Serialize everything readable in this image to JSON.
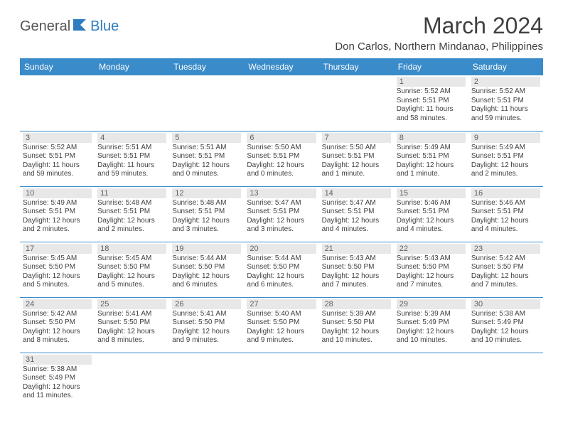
{
  "logo": {
    "part1": "General",
    "part2": "Blue"
  },
  "title": "March 2024",
  "location": "Don Carlos, Northern Mindanao, Philippines",
  "colors": {
    "header_bg": "#3a8bc9",
    "header_fg": "#ffffff",
    "daynum_bg": "#e8e8e8",
    "row_border": "#3a8bc9",
    "logo_blue": "#2d7bc0"
  },
  "weekdays": [
    "Sunday",
    "Monday",
    "Tuesday",
    "Wednesday",
    "Thursday",
    "Friday",
    "Saturday"
  ],
  "weeks": [
    [
      null,
      null,
      null,
      null,
      null,
      {
        "n": "1",
        "rise": "Sunrise: 5:52 AM",
        "set": "Sunset: 5:51 PM",
        "day": "Daylight: 11 hours and 58 minutes."
      },
      {
        "n": "2",
        "rise": "Sunrise: 5:52 AM",
        "set": "Sunset: 5:51 PM",
        "day": "Daylight: 11 hours and 59 minutes."
      }
    ],
    [
      {
        "n": "3",
        "rise": "Sunrise: 5:52 AM",
        "set": "Sunset: 5:51 PM",
        "day": "Daylight: 11 hours and 59 minutes."
      },
      {
        "n": "4",
        "rise": "Sunrise: 5:51 AM",
        "set": "Sunset: 5:51 PM",
        "day": "Daylight: 11 hours and 59 minutes."
      },
      {
        "n": "5",
        "rise": "Sunrise: 5:51 AM",
        "set": "Sunset: 5:51 PM",
        "day": "Daylight: 12 hours and 0 minutes."
      },
      {
        "n": "6",
        "rise": "Sunrise: 5:50 AM",
        "set": "Sunset: 5:51 PM",
        "day": "Daylight: 12 hours and 0 minutes."
      },
      {
        "n": "7",
        "rise": "Sunrise: 5:50 AM",
        "set": "Sunset: 5:51 PM",
        "day": "Daylight: 12 hours and 1 minute."
      },
      {
        "n": "8",
        "rise": "Sunrise: 5:49 AM",
        "set": "Sunset: 5:51 PM",
        "day": "Daylight: 12 hours and 1 minute."
      },
      {
        "n": "9",
        "rise": "Sunrise: 5:49 AM",
        "set": "Sunset: 5:51 PM",
        "day": "Daylight: 12 hours and 2 minutes."
      }
    ],
    [
      {
        "n": "10",
        "rise": "Sunrise: 5:49 AM",
        "set": "Sunset: 5:51 PM",
        "day": "Daylight: 12 hours and 2 minutes."
      },
      {
        "n": "11",
        "rise": "Sunrise: 5:48 AM",
        "set": "Sunset: 5:51 PM",
        "day": "Daylight: 12 hours and 2 minutes."
      },
      {
        "n": "12",
        "rise": "Sunrise: 5:48 AM",
        "set": "Sunset: 5:51 PM",
        "day": "Daylight: 12 hours and 3 minutes."
      },
      {
        "n": "13",
        "rise": "Sunrise: 5:47 AM",
        "set": "Sunset: 5:51 PM",
        "day": "Daylight: 12 hours and 3 minutes."
      },
      {
        "n": "14",
        "rise": "Sunrise: 5:47 AM",
        "set": "Sunset: 5:51 PM",
        "day": "Daylight: 12 hours and 4 minutes."
      },
      {
        "n": "15",
        "rise": "Sunrise: 5:46 AM",
        "set": "Sunset: 5:51 PM",
        "day": "Daylight: 12 hours and 4 minutes."
      },
      {
        "n": "16",
        "rise": "Sunrise: 5:46 AM",
        "set": "Sunset: 5:51 PM",
        "day": "Daylight: 12 hours and 4 minutes."
      }
    ],
    [
      {
        "n": "17",
        "rise": "Sunrise: 5:45 AM",
        "set": "Sunset: 5:50 PM",
        "day": "Daylight: 12 hours and 5 minutes."
      },
      {
        "n": "18",
        "rise": "Sunrise: 5:45 AM",
        "set": "Sunset: 5:50 PM",
        "day": "Daylight: 12 hours and 5 minutes."
      },
      {
        "n": "19",
        "rise": "Sunrise: 5:44 AM",
        "set": "Sunset: 5:50 PM",
        "day": "Daylight: 12 hours and 6 minutes."
      },
      {
        "n": "20",
        "rise": "Sunrise: 5:44 AM",
        "set": "Sunset: 5:50 PM",
        "day": "Daylight: 12 hours and 6 minutes."
      },
      {
        "n": "21",
        "rise": "Sunrise: 5:43 AM",
        "set": "Sunset: 5:50 PM",
        "day": "Daylight: 12 hours and 7 minutes."
      },
      {
        "n": "22",
        "rise": "Sunrise: 5:43 AM",
        "set": "Sunset: 5:50 PM",
        "day": "Daylight: 12 hours and 7 minutes."
      },
      {
        "n": "23",
        "rise": "Sunrise: 5:42 AM",
        "set": "Sunset: 5:50 PM",
        "day": "Daylight: 12 hours and 7 minutes."
      }
    ],
    [
      {
        "n": "24",
        "rise": "Sunrise: 5:42 AM",
        "set": "Sunset: 5:50 PM",
        "day": "Daylight: 12 hours and 8 minutes."
      },
      {
        "n": "25",
        "rise": "Sunrise: 5:41 AM",
        "set": "Sunset: 5:50 PM",
        "day": "Daylight: 12 hours and 8 minutes."
      },
      {
        "n": "26",
        "rise": "Sunrise: 5:41 AM",
        "set": "Sunset: 5:50 PM",
        "day": "Daylight: 12 hours and 9 minutes."
      },
      {
        "n": "27",
        "rise": "Sunrise: 5:40 AM",
        "set": "Sunset: 5:50 PM",
        "day": "Daylight: 12 hours and 9 minutes."
      },
      {
        "n": "28",
        "rise": "Sunrise: 5:39 AM",
        "set": "Sunset: 5:50 PM",
        "day": "Daylight: 12 hours and 10 minutes."
      },
      {
        "n": "29",
        "rise": "Sunrise: 5:39 AM",
        "set": "Sunset: 5:49 PM",
        "day": "Daylight: 12 hours and 10 minutes."
      },
      {
        "n": "30",
        "rise": "Sunrise: 5:38 AM",
        "set": "Sunset: 5:49 PM",
        "day": "Daylight: 12 hours and 10 minutes."
      }
    ],
    [
      {
        "n": "31",
        "rise": "Sunrise: 5:38 AM",
        "set": "Sunset: 5:49 PM",
        "day": "Daylight: 12 hours and 11 minutes."
      },
      null,
      null,
      null,
      null,
      null,
      null
    ]
  ]
}
